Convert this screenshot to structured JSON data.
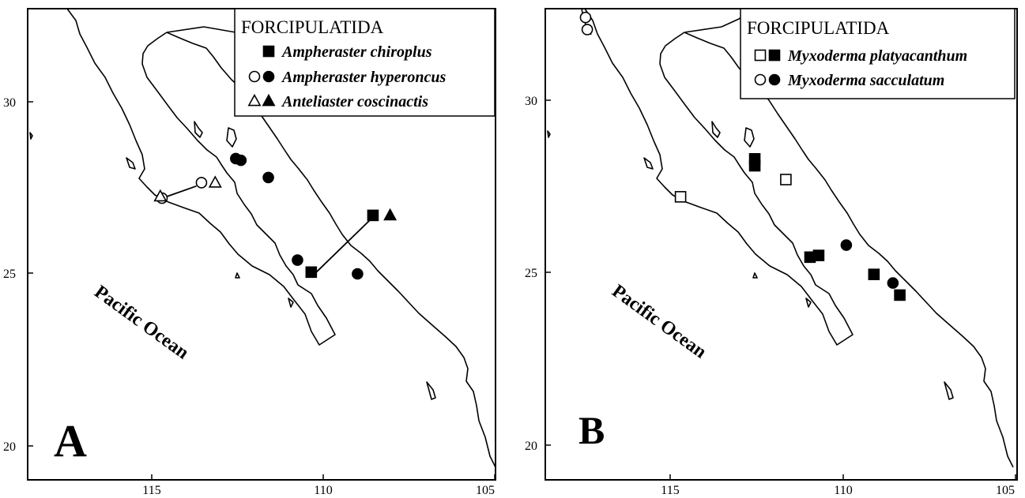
{
  "panels": [
    {
      "letter": "A",
      "ocean_label": "Pacific Ocean",
      "y_ticks": [
        "30",
        "25",
        "20"
      ],
      "x_ticks": [
        "115",
        "110",
        "105"
      ],
      "legend": {
        "title": "FORCIPULATIDA",
        "items": [
          {
            "label": "Ampheraster chiroplus",
            "symbols": [
              "square-filled"
            ]
          },
          {
            "label": "Ampheraster hyperoncus",
            "symbols": [
              "circle-open",
              "circle-filled"
            ]
          },
          {
            "label": "Anteliaster coscinactis",
            "symbols": [
              "triangle-open",
              "triangle-filled"
            ]
          }
        ]
      },
      "points": [
        {
          "symbol": "circle-filled",
          "lon": 112.55,
          "lat": 28.35
        },
        {
          "symbol": "circle-filled",
          "lon": 112.4,
          "lat": 28.3
        },
        {
          "symbol": "circle-filled",
          "lon": 111.6,
          "lat": 27.8
        },
        {
          "symbol": "circle-filled",
          "lon": 110.75,
          "lat": 25.4
        },
        {
          "symbol": "circle-filled",
          "lon": 109.0,
          "lat": 25.0
        },
        {
          "symbol": "circle-open",
          "lon": 113.55,
          "lat": 27.65
        },
        {
          "symbol": "circle-open",
          "lon": 114.7,
          "lat": 27.2
        },
        {
          "symbol": "triangle-open",
          "lon": 113.15,
          "lat": 27.65
        },
        {
          "symbol": "triangle-open",
          "lon": 114.75,
          "lat": 27.25
        },
        {
          "symbol": "square-filled",
          "lon": 110.35,
          "lat": 25.05
        },
        {
          "symbol": "square-filled",
          "lon": 108.55,
          "lat": 26.7
        },
        {
          "symbol": "triangle-filled",
          "lon": 108.05,
          "lat": 26.7
        }
      ],
      "leader_lines": [
        {
          "from": [
            114.55,
            27.25
          ],
          "to": [
            113.7,
            27.55
          ]
        },
        {
          "from": [
            110.2,
            25.05
          ],
          "to": [
            108.6,
            26.6
          ]
        }
      ]
    },
    {
      "letter": "B",
      "ocean_label": "Pacific Ocean",
      "y_ticks": [
        "30",
        "25",
        "20"
      ],
      "x_ticks": [
        "115",
        "110",
        "105"
      ],
      "legend": {
        "title": "FORCIPULATIDA",
        "items": [
          {
            "label": "Myxoderma platyacanthum",
            "symbols": [
              "square-open",
              "square-filled"
            ]
          },
          {
            "label": "Myxoderma sacculatum",
            "symbols": [
              "circle-open",
              "circle-filled"
            ]
          }
        ]
      },
      "points": [
        {
          "symbol": "circle-open",
          "lon": 117.45,
          "lat": 32.4
        },
        {
          "symbol": "circle-open",
          "lon": 117.4,
          "lat": 32.05
        },
        {
          "symbol": "square-filled",
          "lon": 112.55,
          "lat": 28.3
        },
        {
          "symbol": "square-filled",
          "lon": 112.55,
          "lat": 28.1
        },
        {
          "symbol": "square-open",
          "lon": 111.65,
          "lat": 27.7
        },
        {
          "symbol": "square-open",
          "lon": 114.7,
          "lat": 27.2
        },
        {
          "symbol": "square-filled",
          "lon": 110.95,
          "lat": 25.45
        },
        {
          "symbol": "square-filled",
          "lon": 110.7,
          "lat": 25.5
        },
        {
          "symbol": "circle-filled",
          "lon": 109.9,
          "lat": 25.8
        },
        {
          "symbol": "square-filled",
          "lon": 109.1,
          "lat": 24.95
        },
        {
          "symbol": "circle-filled",
          "lon": 108.55,
          "lat": 24.7
        },
        {
          "symbol": "square-filled",
          "lon": 108.35,
          "lat": 24.35
        }
      ],
      "leader_lines": []
    }
  ]
}
